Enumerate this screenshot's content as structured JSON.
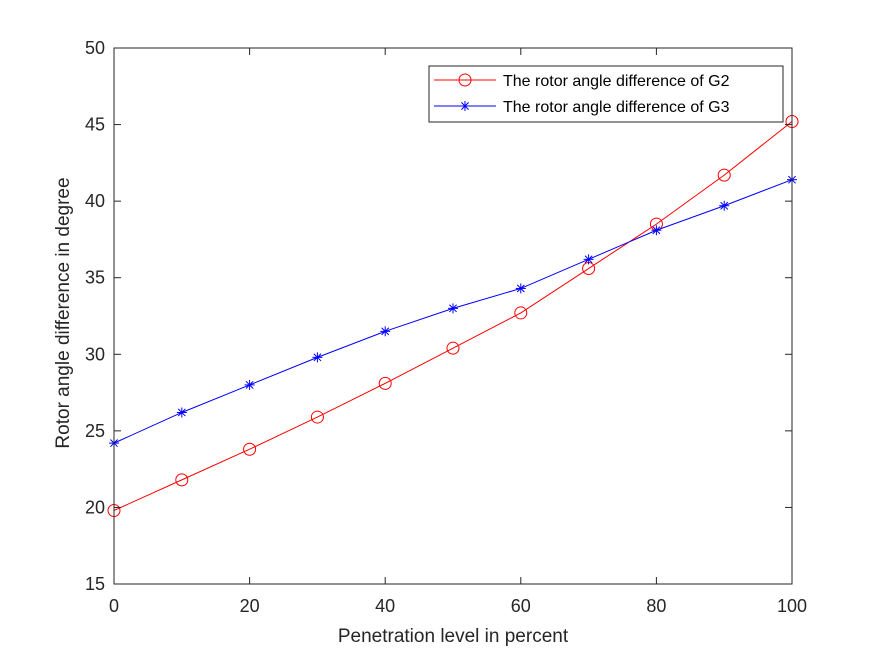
{
  "chart_data": {
    "type": "line",
    "title": "",
    "xlabel": "Penetration level in percent",
    "ylabel": "Rotor angle difference in degree",
    "xlim": [
      0,
      100
    ],
    "ylim": [
      15,
      50
    ],
    "xticks": [
      0,
      20,
      40,
      60,
      80,
      100
    ],
    "yticks": [
      15,
      20,
      25,
      30,
      35,
      40,
      45,
      50
    ],
    "grid": false,
    "legend_position": "top-right",
    "x": [
      0,
      10,
      20,
      30,
      40,
      50,
      60,
      70,
      80,
      90,
      100
    ],
    "series": [
      {
        "name": "The rotor angle difference of G2",
        "color": "#ff0000",
        "marker": "circle",
        "values": [
          19.8,
          21.8,
          23.8,
          25.9,
          28.1,
          30.4,
          32.7,
          35.6,
          38.5,
          41.7,
          45.2
        ]
      },
      {
        "name": "The rotor angle difference of G3",
        "color": "#0000ff",
        "marker": "asterisk",
        "values": [
          24.2,
          26.2,
          28.0,
          29.8,
          31.5,
          33.0,
          34.3,
          36.2,
          38.1,
          39.7,
          41.4
        ]
      }
    ]
  }
}
